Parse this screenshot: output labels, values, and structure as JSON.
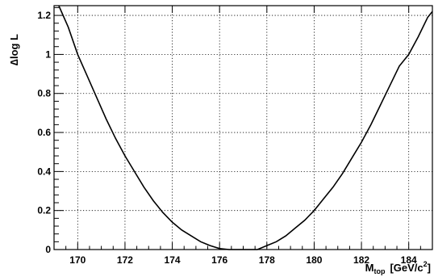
{
  "chart_data": {
    "type": "line",
    "title": "",
    "ylabel_prefix": "∆",
    "ylabel_main": "log L",
    "xlabel_main": "M",
    "xlabel_sub": "top",
    "xlabel_unit": "[GeV/c",
    "xlabel_sup": "2",
    "xlabel_close": "]",
    "xlim": [
      169.0,
      185.0
    ],
    "ylim": [
      0.0,
      1.25
    ],
    "grid": true,
    "legend": "none",
    "x_ticks": [
      170,
      172,
      174,
      176,
      178,
      180,
      182,
      184
    ],
    "x_tick_labels": [
      "170",
      "172",
      "174",
      "176",
      "178",
      "180",
      "182",
      "184"
    ],
    "y_ticks": [
      0,
      0.2,
      0.4,
      0.6,
      0.8,
      1.0,
      1.2
    ],
    "y_tick_labels": [
      "0",
      "0.2",
      "0.4",
      "0.6",
      "0.8",
      "1",
      "1.2"
    ],
    "series": [
      {
        "x": [
          169.2,
          169.6,
          170.0,
          170.4,
          170.8,
          171.2,
          171.6,
          172.0,
          172.4,
          172.8,
          173.2,
          173.6,
          174.0,
          174.4,
          174.8,
          175.2,
          175.6,
          176.0,
          176.4,
          176.6,
          176.8,
          177.0,
          177.2,
          177.4,
          177.6,
          178.0,
          178.4,
          178.8,
          179.2,
          179.6,
          180.0,
          180.4,
          180.8,
          181.2,
          181.6,
          182.0,
          182.4,
          182.8,
          183.2,
          183.6,
          184.0,
          184.4,
          184.8,
          185.0
        ],
        "values": [
          1.27,
          1.14,
          1.0,
          0.89,
          0.78,
          0.67,
          0.57,
          0.48,
          0.4,
          0.32,
          0.25,
          0.19,
          0.14,
          0.1,
          0.07,
          0.04,
          0.02,
          0.005,
          0.0,
          0.0,
          0.0,
          0.0,
          0.0,
          0.0,
          0.0,
          0.02,
          0.04,
          0.07,
          0.11,
          0.15,
          0.2,
          0.26,
          0.32,
          0.39,
          0.47,
          0.55,
          0.64,
          0.74,
          0.84,
          0.94,
          1.0,
          1.09,
          1.19,
          1.22
        ]
      }
    ]
  }
}
